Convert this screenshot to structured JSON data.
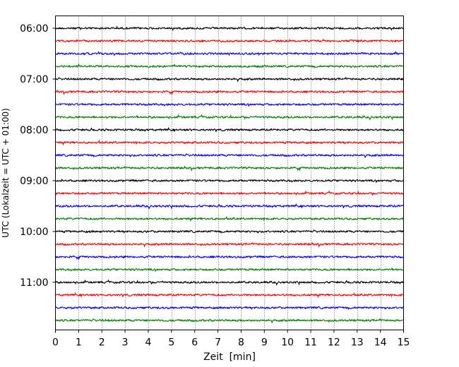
{
  "chart_data": {
    "type": "line",
    "xlabel": "Zeit  [min]",
    "ylabel": "UTC (Lokalzeit = UTC + 01:00)",
    "xlim": [
      0,
      15
    ],
    "x_ticks": [
      0,
      1,
      2,
      3,
      4,
      5,
      6,
      7,
      8,
      9,
      10,
      11,
      12,
      13,
      14,
      15
    ],
    "x_tick_labels": [
      "0",
      "1",
      "2",
      "3",
      "4",
      "5",
      "6",
      "7",
      "8",
      "9",
      "10",
      "11",
      "12",
      "13",
      "14",
      "15"
    ],
    "y_tick_labels": [
      "06:00",
      "07:00",
      "08:00",
      "09:00",
      "10:00",
      "11:00"
    ],
    "y_start_hour": 6,
    "trace_interval_min": 15,
    "trace_count": 24,
    "grid": "vertical dotted lines at each minute",
    "colors": [
      "#000000",
      "#ff0000",
      "#0000ff",
      "#008000"
    ],
    "series": [
      {
        "start": "06:00",
        "color": "#000000"
      },
      {
        "start": "06:15",
        "color": "#ff0000"
      },
      {
        "start": "06:30",
        "color": "#0000ff"
      },
      {
        "start": "06:45",
        "color": "#008000"
      },
      {
        "start": "07:00",
        "color": "#000000"
      },
      {
        "start": "07:15",
        "color": "#ff0000"
      },
      {
        "start": "07:30",
        "color": "#0000ff"
      },
      {
        "start": "07:45",
        "color": "#008000"
      },
      {
        "start": "08:00",
        "color": "#000000"
      },
      {
        "start": "08:15",
        "color": "#ff0000"
      },
      {
        "start": "08:30",
        "color": "#0000ff"
      },
      {
        "start": "08:45",
        "color": "#008000"
      },
      {
        "start": "09:00",
        "color": "#000000"
      },
      {
        "start": "09:15",
        "color": "#ff0000"
      },
      {
        "start": "09:30",
        "color": "#0000ff"
      },
      {
        "start": "09:45",
        "color": "#008000"
      },
      {
        "start": "10:00",
        "color": "#000000"
      },
      {
        "start": "10:15",
        "color": "#ff0000"
      },
      {
        "start": "10:30",
        "color": "#0000ff"
      },
      {
        "start": "10:45",
        "color": "#008000"
      },
      {
        "start": "11:00",
        "color": "#000000"
      },
      {
        "start": "11:15",
        "color": "#ff0000"
      },
      {
        "start": "11:30",
        "color": "#0000ff"
      },
      {
        "start": "11:45",
        "color": "#008000"
      }
    ]
  }
}
